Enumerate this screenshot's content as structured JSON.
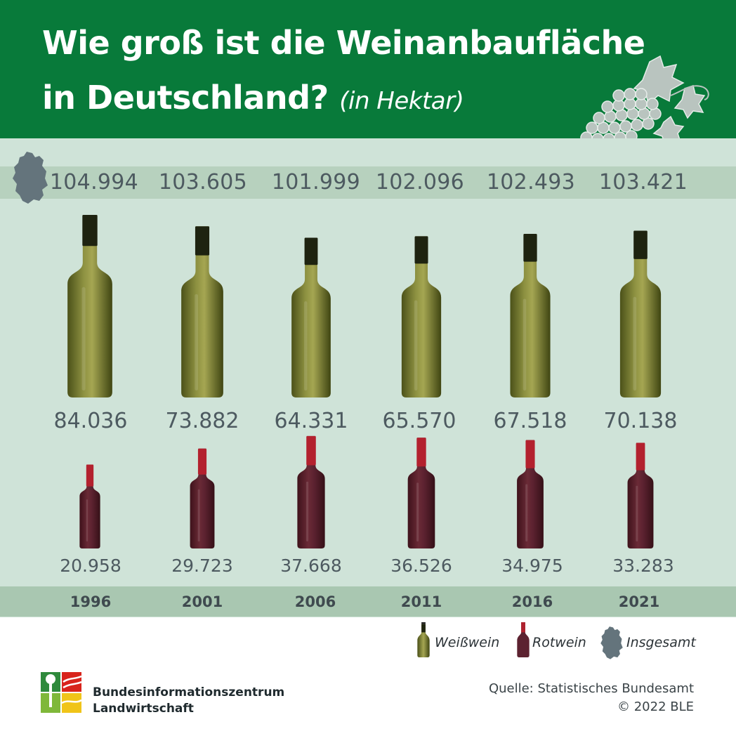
{
  "header": {
    "title_line1": "Wie groß ist die Weinanbaufläche",
    "title_line2": "in Deutschland?",
    "subtitle": "(in Hektar)",
    "decoration_icon": "grapes-icon",
    "background_color": "#087a3a"
  },
  "chart_data": {
    "type": "bar",
    "bar_style": "bottle pictograms scaled by value",
    "categories": [
      "1996",
      "2001",
      "2006",
      "2011",
      "2016",
      "2021"
    ],
    "series": [
      {
        "name": "Insgesamt",
        "values": [
          104994,
          103605,
          101999,
          102096,
          102493,
          103421
        ],
        "labels": [
          "104.994",
          "103.605",
          "101.999",
          "102.096",
          "102.493",
          "103.421"
        ]
      },
      {
        "name": "Weißwein",
        "values": [
          84036,
          73882,
          64331,
          65570,
          67518,
          70138
        ],
        "labels": [
          "84.036",
          "73.882",
          "64.331",
          "65.570",
          "67.518",
          "70.138"
        ],
        "color": "#6f7a2a"
      },
      {
        "name": "Rotwein",
        "values": [
          20958,
          29723,
          37668,
          36526,
          34975,
          33283
        ],
        "labels": [
          "20.958",
          "29.723",
          "37.668",
          "36.526",
          "34.975",
          "33.283"
        ],
        "color": "#5a1f2a"
      }
    ]
  },
  "legend": {
    "white": "Weißwein",
    "red": "Rotwein",
    "total": "Insgesamt",
    "icons": [
      "white-bottle-icon",
      "red-bottle-icon",
      "germany-map-icon"
    ]
  },
  "footer": {
    "org_line1": "Bundesinformationszentrum",
    "org_line2": "Landwirtschaft",
    "source_line1": "Quelle: Statistisches Bundesamt",
    "source_line2": "© 2022 BLE"
  },
  "colors": {
    "panel": "#cfe3d8",
    "band": "#b7d1be",
    "year_band": "#a9c7b1",
    "text": "#4d5a60"
  }
}
